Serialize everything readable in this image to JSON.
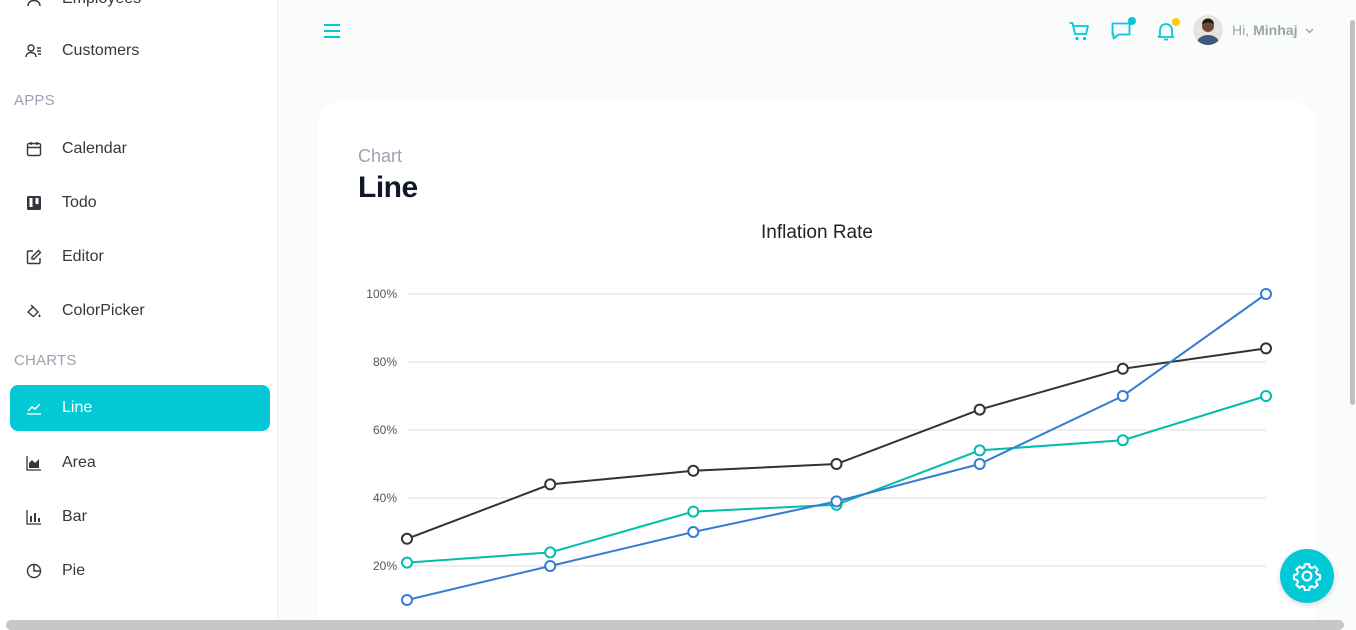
{
  "sidebar": {
    "items_top": [
      {
        "label": "Employees",
        "icon": "user-icon"
      },
      {
        "label": "Customers",
        "icon": "customers-icon"
      }
    ],
    "sections": [
      {
        "title": "APPS",
        "items": [
          {
            "label": "Calendar",
            "icon": "calendar-icon"
          },
          {
            "label": "Todo",
            "icon": "kanban-icon"
          },
          {
            "label": "Editor",
            "icon": "edit-icon"
          },
          {
            "label": "ColorPicker",
            "icon": "paint-bucket-icon"
          }
        ]
      },
      {
        "title": "CHARTS",
        "items": [
          {
            "label": "Line",
            "icon": "line-chart-icon",
            "active": true
          },
          {
            "label": "Area",
            "icon": "area-chart-icon"
          },
          {
            "label": "Bar",
            "icon": "bar-chart-icon"
          },
          {
            "label": "Pie",
            "icon": "pie-chart-icon"
          }
        ]
      }
    ]
  },
  "navbar": {
    "greeting": "Hi,",
    "username": "Minhaj",
    "icons": [
      "menu-icon",
      "cart-icon",
      "chat-icon",
      "bell-icon"
    ],
    "chat_badge_color": "#03c9d7",
    "notification_badge_color": "#fec90f"
  },
  "page": {
    "category": "Chart",
    "title": "Line"
  },
  "colors": {
    "accent": "#03c9d7",
    "series_dark": "#333333",
    "series_teal": "#00bdae",
    "series_blue": "#357cd2"
  },
  "chart_data": {
    "type": "line",
    "title": "Inflation Rate",
    "xlabel": "",
    "ylabel": "",
    "y_tick_labels": [
      "20%",
      "40%",
      "60%",
      "80%",
      "100%"
    ],
    "y_ticks": [
      20,
      40,
      60,
      80,
      100
    ],
    "ylim": [
      0,
      100
    ],
    "x": [
      1,
      2,
      3,
      4,
      5,
      6,
      7
    ],
    "grid": "horizontal",
    "series": [
      {
        "color": "#333333",
        "values": [
          28,
          44,
          48,
          50,
          66,
          78,
          84
        ]
      },
      {
        "color": "#00bdae",
        "values": [
          21,
          24,
          36,
          38,
          54,
          57,
          70
        ]
      },
      {
        "color": "#357cd2",
        "values": [
          10,
          20,
          30,
          39,
          50,
          70,
          100
        ]
      }
    ]
  }
}
